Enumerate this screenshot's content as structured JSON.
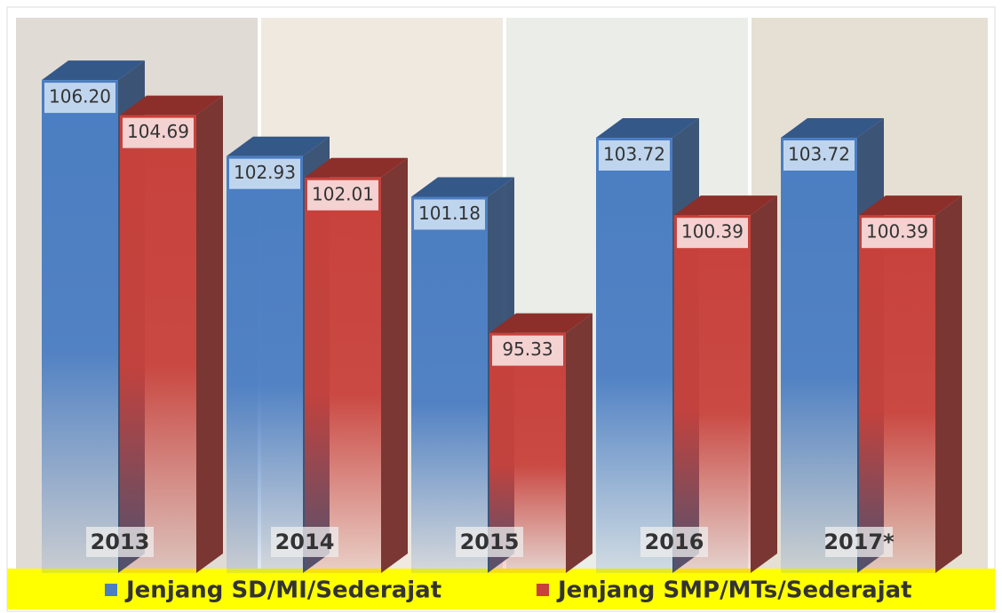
{
  "chart_data": {
    "type": "bar",
    "categories": [
      "2013",
      "2014",
      "2015",
      "2016",
      "2017*"
    ],
    "series": [
      {
        "name": "Jenjang SD/MI/Sederajat",
        "color": "#4a7dc2",
        "values": [
          106.2,
          102.93,
          101.18,
          103.72,
          103.72
        ],
        "value_labels": [
          "106.20",
          "102.93",
          "101.18",
          "103.72",
          "103.72"
        ]
      },
      {
        "name": "Jenjang SMP/MTs/Sederajat",
        "color": "#c8413b",
        "values": [
          104.69,
          102.01,
          95.33,
          100.39,
          100.39
        ],
        "value_labels": [
          "104.69",
          "102.01",
          "95.33",
          "100.39",
          "100.39"
        ]
      }
    ],
    "ylim": [
      85,
      108
    ],
    "grid": false,
    "legend": "bottom"
  }
}
